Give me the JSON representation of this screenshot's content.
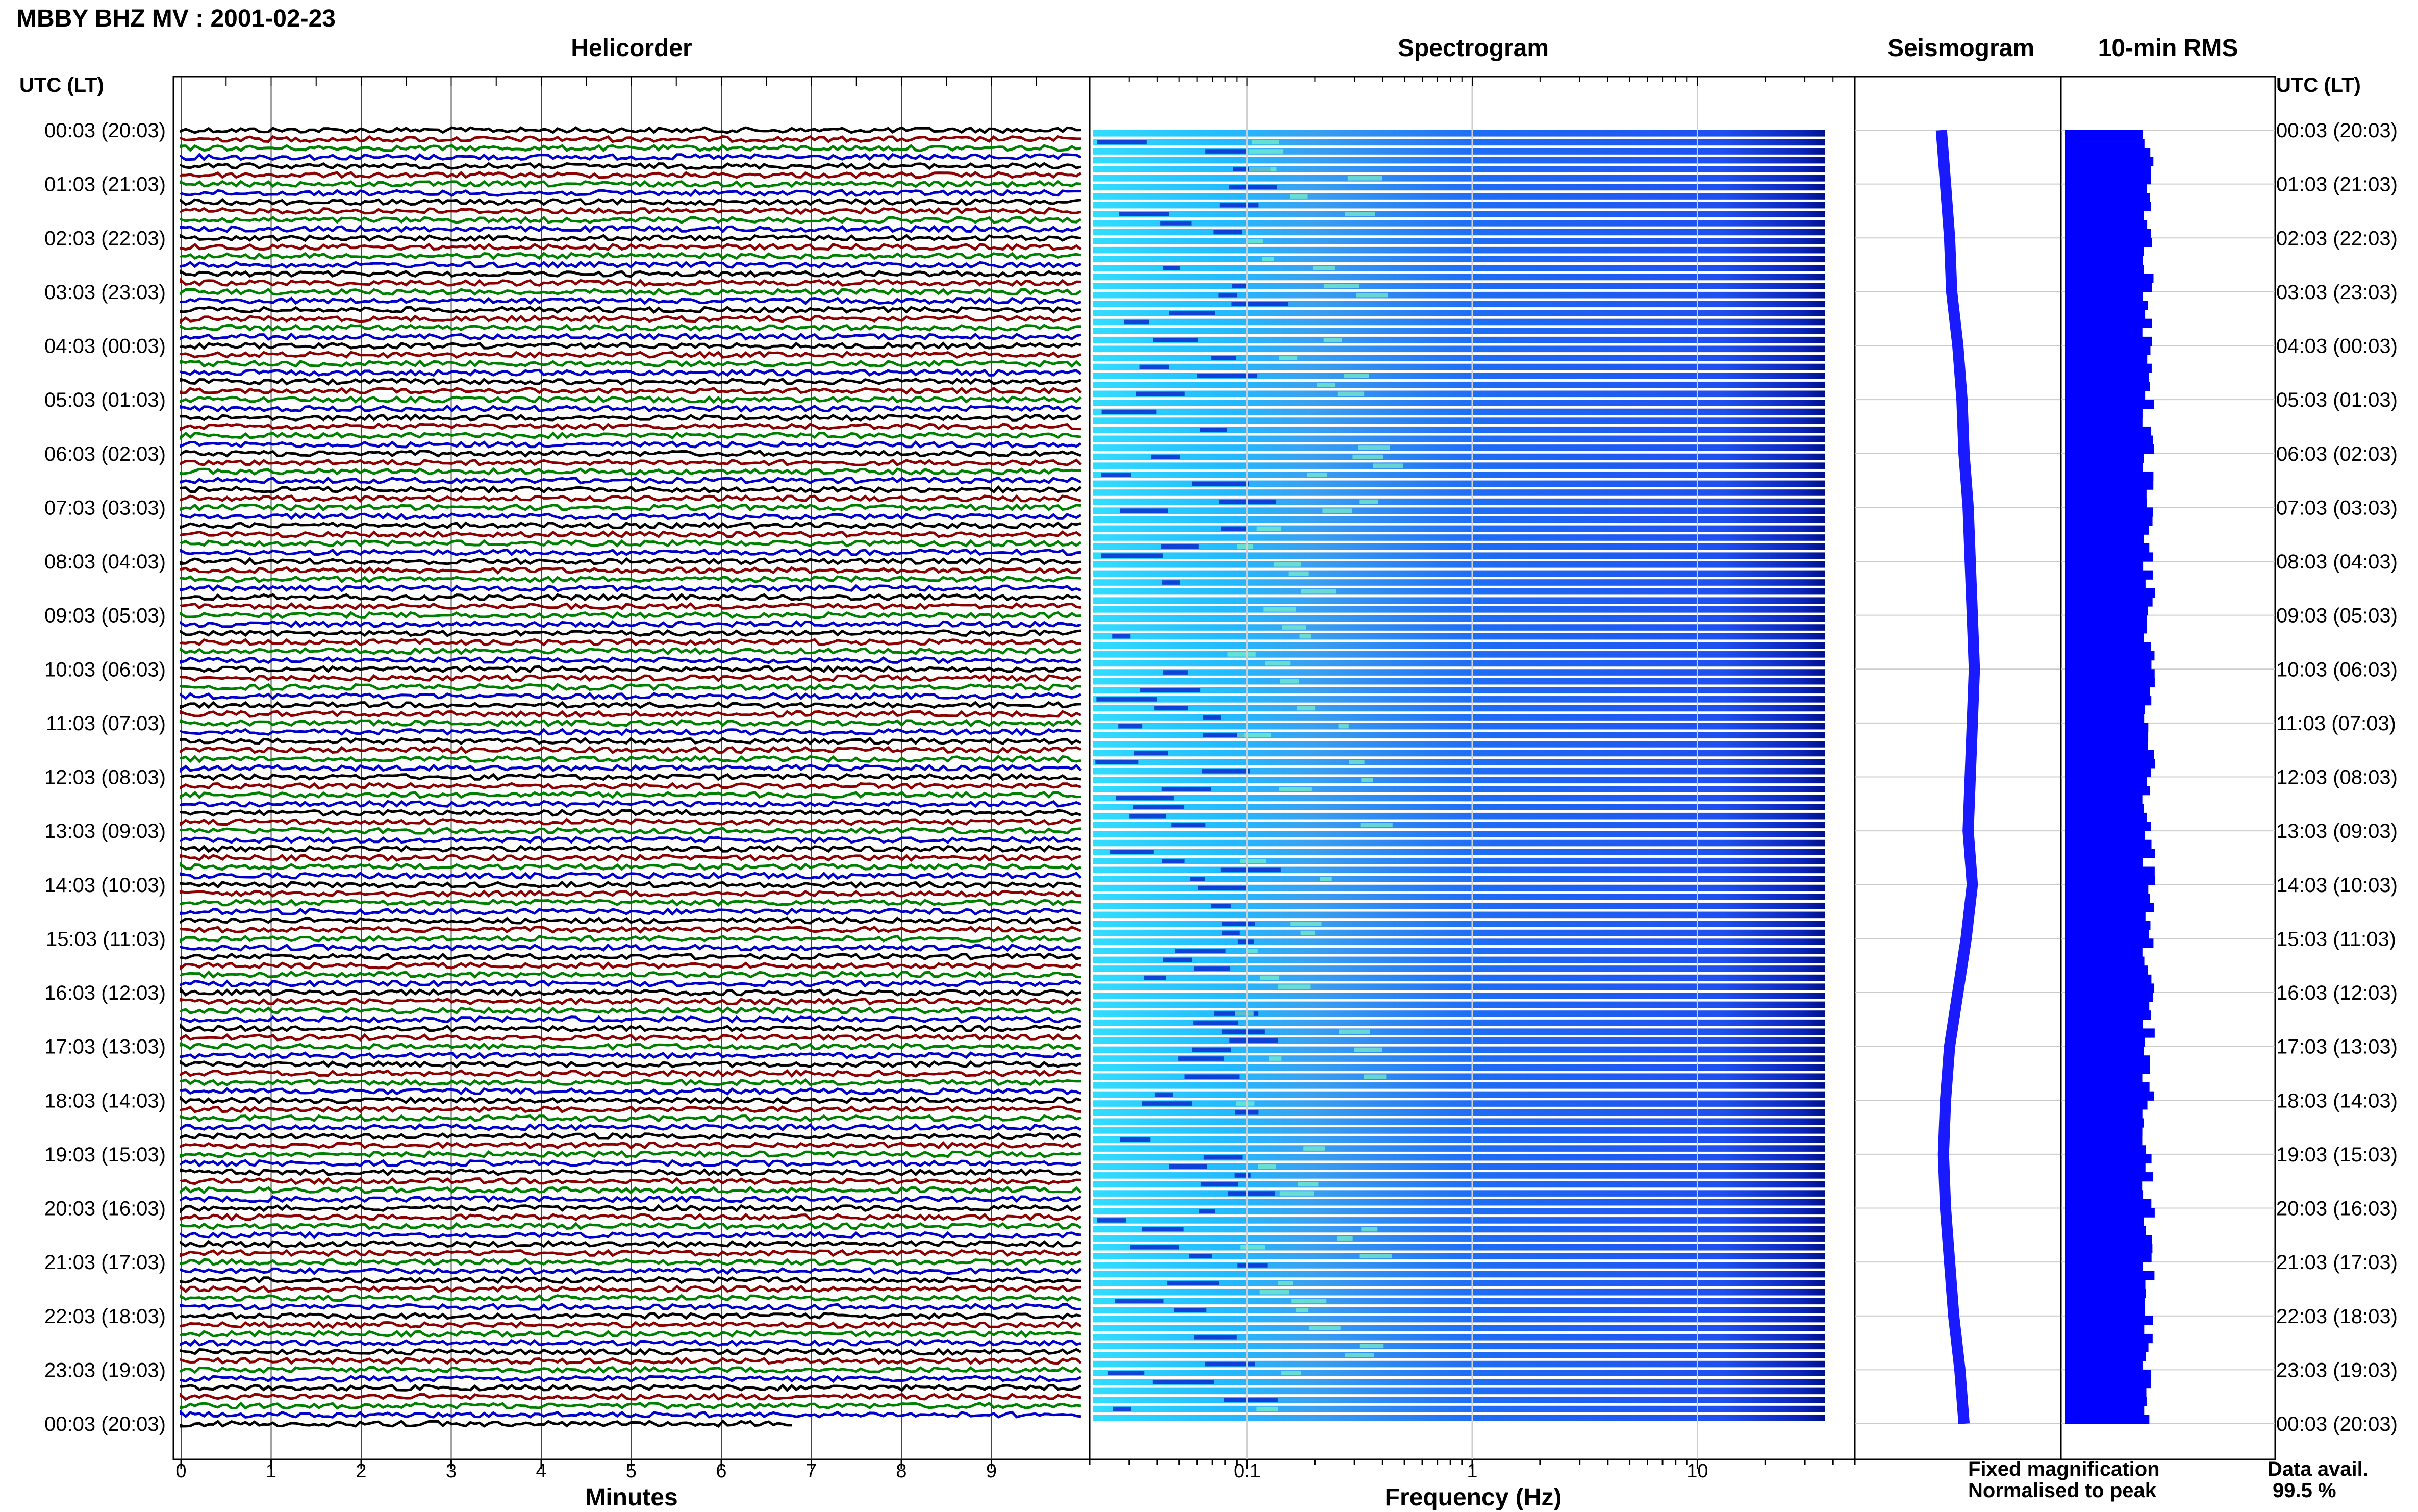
{
  "header": {
    "title": "MBBY BHZ MV : 2001-02-23"
  },
  "panels": {
    "helicorder": "Helicorder",
    "spectrogram": "Spectrogram",
    "seismogram": "Seismogram",
    "rms": "10-min RMS"
  },
  "axis": {
    "time_label_left": "UTC (LT)",
    "time_label_right": "UTC (LT)",
    "x_label_helicorder": "Minutes",
    "x_label_spectrogram": "Frequency (Hz)"
  },
  "legend": {
    "fixed": {
      "text": "Fixed magnification",
      "color": "#1a1aff"
    },
    "normalised": {
      "text": "Normalised to peak",
      "color": "#ff1a1a"
    }
  },
  "availability": {
    "label": "Data avail.",
    "value": "99.5 %"
  },
  "colors": {
    "trace_cycle": [
      "#000000",
      "#8b0000",
      "#008000",
      "#0000cc"
    ],
    "seismogram": "#1a1aff",
    "rms": "#0000ff",
    "spectrogram_low": "#00ccff",
    "spectrogram_high": "#1f3fff"
  },
  "chart_data": [
    {
      "type": "line",
      "title": "Helicorder",
      "xlabel": "Minutes",
      "ylabel": "UTC (LT)",
      "xlim": [
        0,
        10
      ],
      "x_ticks": [
        "0",
        "1",
        "2",
        "3",
        "4",
        "5",
        "6",
        "7",
        "8",
        "9"
      ],
      "y_tick_labels": [
        "00:03 (20:03)",
        "01:03 (21:03)",
        "02:03 (22:03)",
        "03:03 (23:03)",
        "04:03 (00:03)",
        "05:03 (01:03)",
        "06:03 (02:03)",
        "07:03 (03:03)",
        "08:03 (04:03)",
        "09:03 (05:03)",
        "10:03 (06:03)",
        "11:03 (07:03)",
        "12:03 (08:03)",
        "13:03 (09:03)",
        "14:03 (10:03)",
        "15:03 (11:03)",
        "16:03 (12:03)",
        "17:03 (13:03)",
        "18:03 (14:03)",
        "19:03 (15:03)",
        "20:03 (16:03)",
        "21:03 (17:03)",
        "22:03 (18:03)",
        "23:03 (19:03)",
        "00:03 (20:03)"
      ],
      "rows_per_hour": 6,
      "last_row_end_minute": 6.8,
      "grid": true
    },
    {
      "type": "heatmap",
      "title": "Spectrogram",
      "xlabel": "Frequency (Hz)",
      "x_scale": "log",
      "xlim": [
        0.02,
        50
      ],
      "x_ticks": [
        "0.1",
        "1",
        "10"
      ],
      "x_tick_values": [
        0.1,
        1,
        10
      ],
      "rows": 144
    },
    {
      "type": "line",
      "title": "Seismogram",
      "note": "hourly level trace",
      "values": [
        0.42,
        0.44,
        0.46,
        0.47,
        0.5,
        0.52,
        0.53,
        0.55,
        0.56,
        0.57,
        0.58,
        0.57,
        0.56,
        0.55,
        0.57,
        0.54,
        0.5,
        0.46,
        0.44,
        0.43,
        0.44,
        0.46,
        0.48,
        0.51,
        0.53
      ]
    },
    {
      "type": "bar",
      "title": "10-min RMS",
      "orientation": "horizontal",
      "rows": 144,
      "value_range": [
        0.36,
        0.42
      ],
      "grid": true
    }
  ]
}
